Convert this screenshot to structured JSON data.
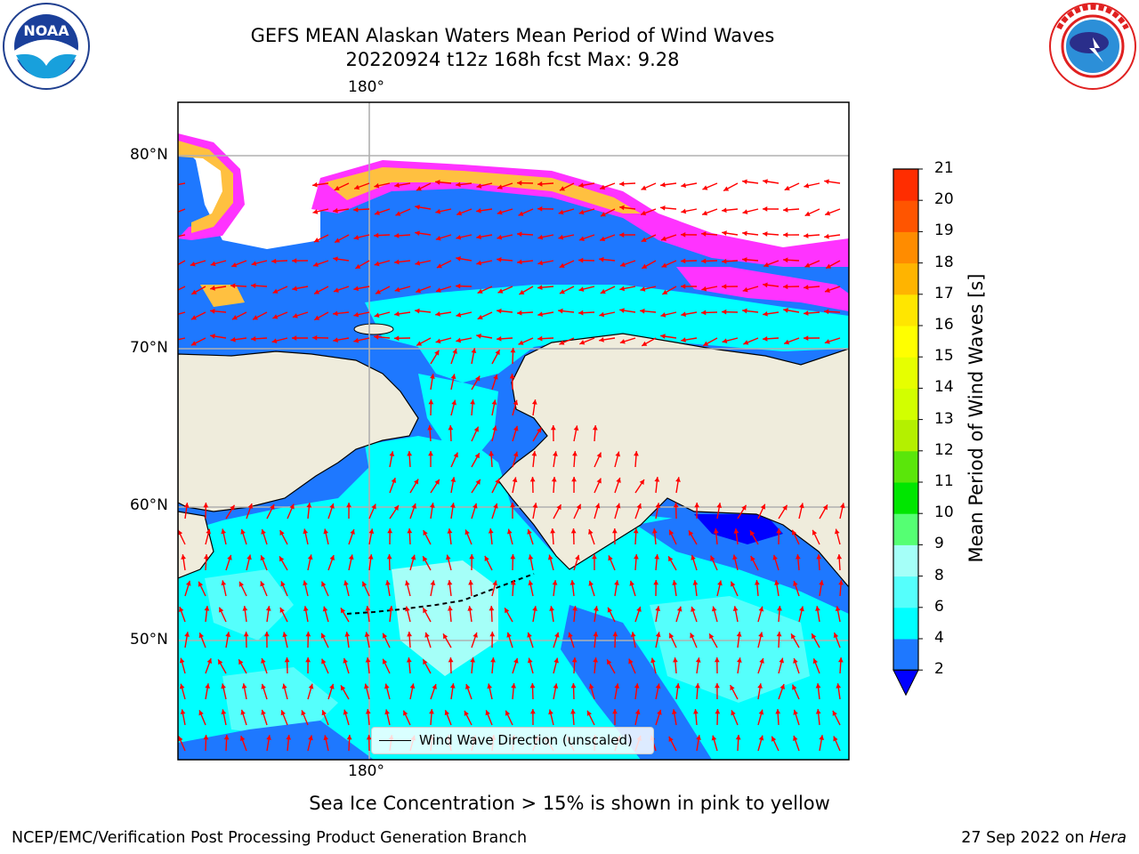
{
  "title": {
    "line1": "GEFS MEAN Alaskan Waters Mean Period of Wind Waves",
    "line2": "20220924 t12z 168h fcst   Max: 9.28"
  },
  "logos": {
    "noaa_left": {
      "text": "NOAA",
      "ring": "NATIONAL OCEANIC AND ATMOSPHERIC ADMINISTRATION · U.S. DEPARTMENT OF COMMERCE"
    },
    "nws_right": {
      "ring": "NATIONAL WEATHER SERVICE"
    }
  },
  "map": {
    "lat_labels": [
      "80°N",
      "70°N",
      "60°N",
      "50°N"
    ],
    "lon_label_top": "180°",
    "lon_label_bottom": "180°",
    "legend_label": "Wind Wave Direction (unscaled)",
    "colors": {
      "land": "#efecdc",
      "band_2_4": "#1e78ff",
      "band_4_6": "#00ffff",
      "band_6_8": "#55fffc",
      "band_8_9": "#a5fff8",
      "band_below_2": "#0000ff",
      "sea_ice_pink": "#ff33ff",
      "sea_ice_orange": "#ffc040",
      "sea_ice_yellow": "#ffe600",
      "arrows": "#ff0000",
      "coastline": "#000000",
      "grid": "#b0b0b0"
    }
  },
  "colorbar": {
    "label": "Mean Period of Wind Waves [s]",
    "ticks": [
      "2",
      "4",
      "6",
      "8",
      "9",
      "10",
      "11",
      "12",
      "13",
      "14",
      "15",
      "16",
      "17",
      "18",
      "19",
      "20",
      "21"
    ],
    "colors": [
      "#1e78ff",
      "#00ffff",
      "#55fffc",
      "#a5fff8",
      "#55ff73",
      "#00e600",
      "#5ae60a",
      "#b4f000",
      "#d2ff00",
      "#e6ff00",
      "#ffff00",
      "#ffe600",
      "#ffb400",
      "#ff8c00",
      "#ff5500",
      "#ff2d00"
    ],
    "extend_color": "#0000ff"
  },
  "footer": {
    "note": "Sea Ice Concentration > 15% is shown in pink to yellow",
    "left": "NCEP/EMC/Verification Post Processing Product Generation Branch",
    "right_date": "27 Sep 2022 on ",
    "right_host": "Hera"
  }
}
